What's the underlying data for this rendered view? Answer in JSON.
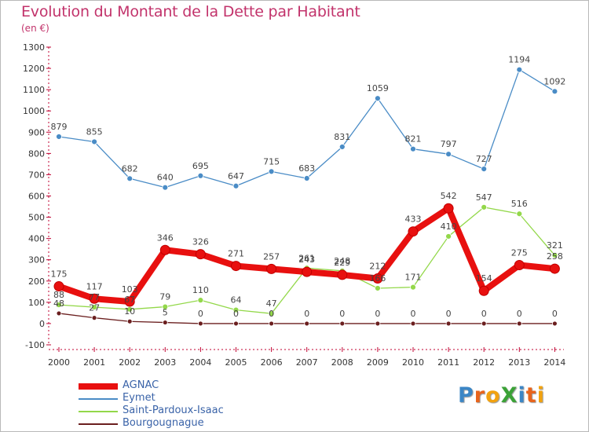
{
  "title": "Evolution du Montant de la Dette par Habitant",
  "unit_label": "(en €)",
  "logo": {
    "text": "ProXiti",
    "colors": [
      "#3b86c6",
      "#e8641c",
      "#f2a20f",
      "#3ba237",
      "#3b86c6",
      "#e8641c",
      "#f2a20f"
    ]
  },
  "chart_data": {
    "type": "line",
    "x": [
      "2000",
      "2001",
      "2002",
      "2003",
      "2004",
      "2005",
      "2006",
      "2007",
      "2008",
      "2009",
      "2010",
      "2011",
      "2012",
      "2013",
      "2014"
    ],
    "ylim": [
      -100,
      1300
    ],
    "yticks": [
      -100,
      0,
      100,
      200,
      300,
      400,
      500,
      600,
      700,
      800,
      900,
      1000,
      1100,
      1200,
      1300
    ],
    "grid": false,
    "legend_position": "bottom-left",
    "series": [
      {
        "name": "AGNAC",
        "color": "#e8100f",
        "values": [
          175,
          117,
          103,
          346,
          326,
          271,
          257,
          243,
          229,
          212,
          433,
          542,
          154,
          275,
          258
        ]
      },
      {
        "name": "Eymet",
        "color": "#4a8cc6",
        "values": [
          879,
          855,
          682,
          640,
          695,
          647,
          715,
          683,
          831,
          1059,
          821,
          797,
          727,
          1194,
          1092
        ]
      },
      {
        "name": "Saint-Pardoux-Isaac",
        "color": "#93d84a",
        "values": [
          88,
          77,
          67,
          79,
          110,
          64,
          47,
          261,
          248,
          166,
          171,
          410,
          547,
          516,
          321
        ]
      },
      {
        "name": "Bourgougnague",
        "color": "#6b1f1f",
        "values": [
          48,
          27,
          10,
          5,
          0,
          0,
          0,
          0,
          0,
          0,
          0,
          0,
          0,
          0,
          0
        ]
      }
    ]
  }
}
